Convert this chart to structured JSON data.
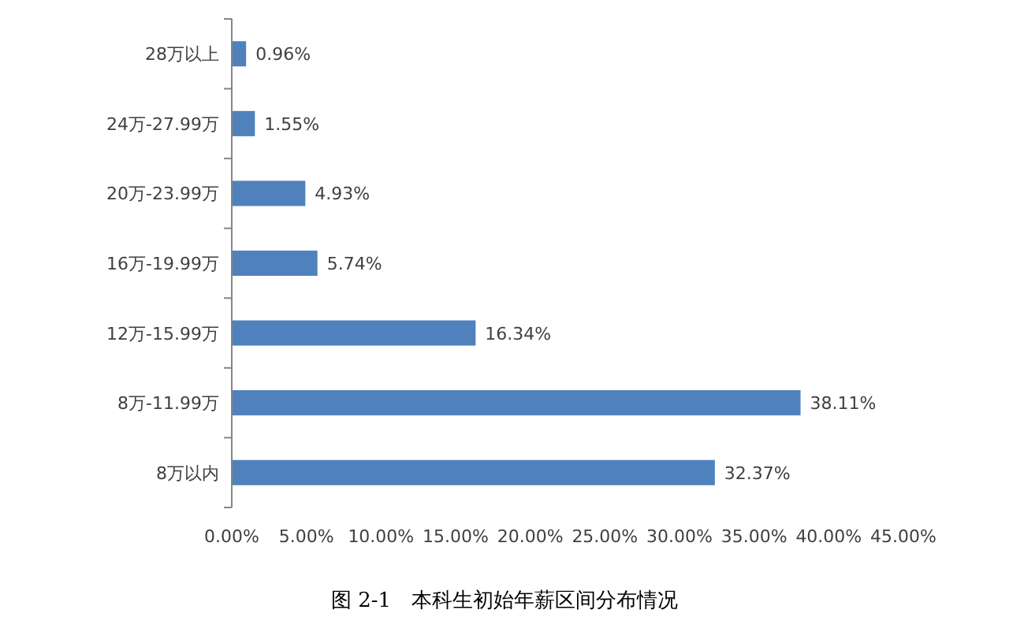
{
  "chart_data": {
    "type": "bar",
    "orientation": "horizontal",
    "categories": [
      "28万以上",
      "24万-27.99万",
      "20万-23.99万",
      "16万-19.99万",
      "12万-15.99万",
      "8万-11.99万",
      "8万以内"
    ],
    "values": [
      0.96,
      1.55,
      4.93,
      5.74,
      16.34,
      38.11,
      32.37
    ],
    "color": "#4f81bd",
    "value_labels": [
      "0.96%",
      "1.55%",
      "4.93%",
      "5.74%",
      "16.34%",
      "38.11%",
      "32.37%"
    ],
    "xlim": [
      0,
      45
    ],
    "xticks": [
      {
        "value": 0,
        "label": "0.00%"
      },
      {
        "value": 5,
        "label": "5.00%"
      },
      {
        "value": 10,
        "label": "10.00%"
      },
      {
        "value": 15,
        "label": "15.00%"
      },
      {
        "value": 20,
        "label": "20.00%"
      },
      {
        "value": 25,
        "label": "25.00%"
      },
      {
        "value": 30,
        "label": "30.00%"
      },
      {
        "value": 35,
        "label": "35.00%"
      },
      {
        "value": 40,
        "label": "40.00%"
      },
      {
        "value": 45,
        "label": "45.00%"
      }
    ],
    "grid": false,
    "annotations": [
      "图 2-1　本科生初始年薪区间分布情况"
    ]
  }
}
